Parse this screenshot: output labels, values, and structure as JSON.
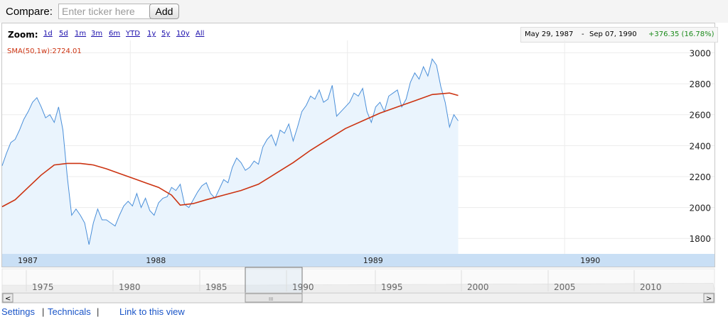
{
  "compare": {
    "label": "Compare:",
    "placeholder": "Enter ticker here",
    "add_label": "Add"
  },
  "zoom": {
    "label": "Zoom:",
    "options": [
      "1d",
      "5d",
      "1m",
      "3m",
      "6m",
      "YTD",
      "1y",
      "5y",
      "10y",
      "All"
    ]
  },
  "range": {
    "start": "May 29, 1987",
    "separator": "-",
    "end": "Sep 07, 1990",
    "change": "+376.35 (16.78%)",
    "change_color": "#1a8a1a"
  },
  "sma_label": "SMA(50,1w):2724.01",
  "colors": {
    "price_line": "#4a8fd9",
    "price_fill": "#eaf4fd",
    "sma_line": "#cc3311",
    "axis_band": "#c9dff5"
  },
  "chart_data": {
    "type": "area",
    "xlim": [
      1987.41,
      1990.69
    ],
    "ylim": [
      1700,
      3080
    ],
    "y_ticks": [
      1800,
      2000,
      2200,
      2400,
      2600,
      2800,
      3000
    ],
    "x_ticks": [
      {
        "x": 1987.0,
        "label": "1987"
      },
      {
        "x": 1988.0,
        "label": "1988"
      },
      {
        "x": 1989.0,
        "label": "1989"
      },
      {
        "x": 1990.0,
        "label": "1990"
      }
    ],
    "series": [
      {
        "name": "",
        "values": [
          [
            1987.41,
            2270
          ],
          [
            1987.43,
            2350
          ],
          [
            1987.45,
            2420
          ],
          [
            1987.47,
            2440
          ],
          [
            1987.49,
            2500
          ],
          [
            1987.51,
            2570
          ],
          [
            1987.53,
            2620
          ],
          [
            1987.55,
            2680
          ],
          [
            1987.57,
            2710
          ],
          [
            1987.59,
            2650
          ],
          [
            1987.61,
            2580
          ],
          [
            1987.63,
            2600
          ],
          [
            1987.65,
            2550
          ],
          [
            1987.67,
            2650
          ],
          [
            1987.69,
            2500
          ],
          [
            1987.71,
            2200
          ],
          [
            1987.73,
            1950
          ],
          [
            1987.75,
            1990
          ],
          [
            1987.77,
            1950
          ],
          [
            1987.79,
            1900
          ],
          [
            1987.81,
            1760
          ],
          [
            1987.83,
            1900
          ],
          [
            1987.85,
            1990
          ],
          [
            1987.87,
            1920
          ],
          [
            1987.89,
            1920
          ],
          [
            1987.91,
            1900
          ],
          [
            1987.93,
            1880
          ],
          [
            1987.95,
            1950
          ],
          [
            1987.97,
            2010
          ],
          [
            1987.99,
            2040
          ],
          [
            1988.01,
            2010
          ],
          [
            1988.03,
            2090
          ],
          [
            1988.05,
            2000
          ],
          [
            1988.07,
            2060
          ],
          [
            1988.09,
            1980
          ],
          [
            1988.11,
            1950
          ],
          [
            1988.13,
            2030
          ],
          [
            1988.15,
            2060
          ],
          [
            1988.17,
            2070
          ],
          [
            1988.19,
            2130
          ],
          [
            1988.21,
            2110
          ],
          [
            1988.23,
            2150
          ],
          [
            1988.25,
            2020
          ],
          [
            1988.27,
            2000
          ],
          [
            1988.29,
            2050
          ],
          [
            1988.31,
            2100
          ],
          [
            1988.33,
            2140
          ],
          [
            1988.35,
            2160
          ],
          [
            1988.37,
            2090
          ],
          [
            1988.39,
            2060
          ],
          [
            1988.41,
            2120
          ],
          [
            1988.43,
            2180
          ],
          [
            1988.45,
            2160
          ],
          [
            1988.47,
            2260
          ],
          [
            1988.49,
            2320
          ],
          [
            1988.51,
            2290
          ],
          [
            1988.53,
            2240
          ],
          [
            1988.55,
            2260
          ],
          [
            1988.57,
            2300
          ],
          [
            1988.59,
            2280
          ],
          [
            1988.61,
            2390
          ],
          [
            1988.63,
            2440
          ],
          [
            1988.65,
            2470
          ],
          [
            1988.67,
            2400
          ],
          [
            1988.69,
            2500
          ],
          [
            1988.71,
            2480
          ],
          [
            1988.73,
            2540
          ],
          [
            1988.75,
            2430
          ],
          [
            1988.77,
            2520
          ],
          [
            1988.79,
            2620
          ],
          [
            1988.81,
            2660
          ],
          [
            1988.83,
            2720
          ],
          [
            1988.85,
            2700
          ],
          [
            1988.87,
            2760
          ],
          [
            1988.89,
            2680
          ],
          [
            1988.91,
            2700
          ],
          [
            1988.93,
            2790
          ],
          [
            1988.95,
            2590
          ],
          [
            1988.97,
            2620
          ],
          [
            1988.99,
            2650
          ],
          [
            1989.01,
            2680
          ],
          [
            1989.03,
            2740
          ],
          [
            1989.05,
            2720
          ],
          [
            1989.07,
            2770
          ],
          [
            1989.09,
            2620
          ],
          [
            1989.11,
            2550
          ],
          [
            1989.13,
            2650
          ],
          [
            1989.15,
            2680
          ],
          [
            1989.17,
            2620
          ],
          [
            1989.19,
            2720
          ],
          [
            1989.21,
            2740
          ],
          [
            1989.23,
            2760
          ],
          [
            1989.25,
            2650
          ],
          [
            1989.27,
            2700
          ],
          [
            1989.29,
            2810
          ],
          [
            1989.31,
            2870
          ],
          [
            1989.33,
            2830
          ],
          [
            1989.35,
            2910
          ],
          [
            1989.37,
            2850
          ],
          [
            1989.39,
            2960
          ],
          [
            1989.41,
            2920
          ],
          [
            1989.43,
            2780
          ],
          [
            1989.45,
            2680
          ],
          [
            1989.47,
            2520
          ],
          [
            1989.49,
            2600
          ],
          [
            1989.51,
            2560
          ]
        ]
      },
      {
        "name": "SMA(50,1w)",
        "values": [
          [
            1987.41,
            2005
          ],
          [
            1987.47,
            2050
          ],
          [
            1987.53,
            2130
          ],
          [
            1987.59,
            2210
          ],
          [
            1987.65,
            2275
          ],
          [
            1987.71,
            2285
          ],
          [
            1987.77,
            2285
          ],
          [
            1987.83,
            2275
          ],
          [
            1987.89,
            2250
          ],
          [
            1987.95,
            2220
          ],
          [
            1988.01,
            2190
          ],
          [
            1988.07,
            2160
          ],
          [
            1988.13,
            2130
          ],
          [
            1988.19,
            2080
          ],
          [
            1988.23,
            2015
          ],
          [
            1988.29,
            2025
          ],
          [
            1988.35,
            2050
          ],
          [
            1988.43,
            2080
          ],
          [
            1988.51,
            2110
          ],
          [
            1988.59,
            2150
          ],
          [
            1988.67,
            2220
          ],
          [
            1988.75,
            2290
          ],
          [
            1988.83,
            2370
          ],
          [
            1988.91,
            2440
          ],
          [
            1988.99,
            2510
          ],
          [
            1989.07,
            2560
          ],
          [
            1989.15,
            2610
          ],
          [
            1989.23,
            2650
          ],
          [
            1989.31,
            2690
          ],
          [
            1989.39,
            2730
          ],
          [
            1989.47,
            2740
          ],
          [
            1989.51,
            2724
          ]
        ]
      }
    ],
    "navigator": {
      "labels": [
        "1975",
        "1980",
        "1985",
        "1990",
        "1995",
        "2000",
        "2005",
        "2010"
      ],
      "scroll_left": "<",
      "scroll_right": ">",
      "grip": "III"
    }
  },
  "footer": {
    "settings": "Settings",
    "sep1": "|",
    "technicals": "Technicals",
    "sep2": "|",
    "link": "Link to this view"
  }
}
